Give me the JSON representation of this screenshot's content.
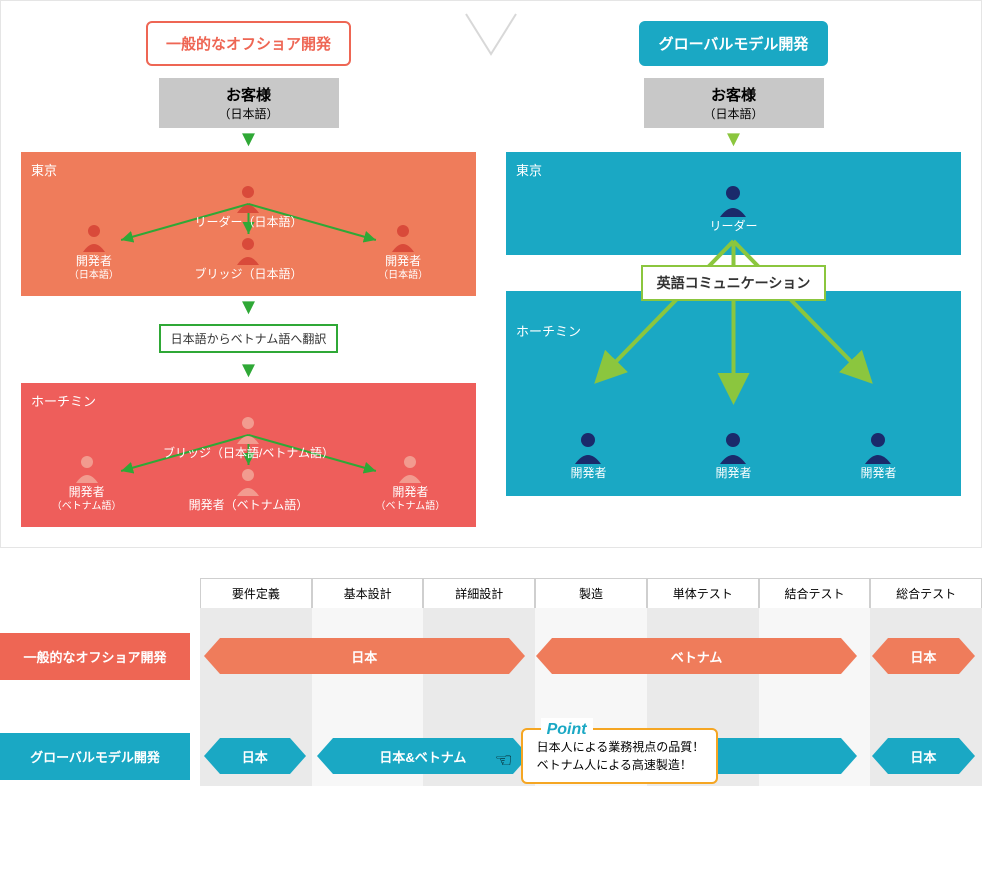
{
  "colors": {
    "orange": "#ee6654",
    "orange2": "#ef7c5b",
    "red": "#ee5e5b",
    "teal": "#1aa8c4",
    "green": "#2fa836",
    "lime": "#8bc63e",
    "navy": "#1a2a6b",
    "gray": "#c8c8c8",
    "amber": "#f5a623"
  },
  "top": {
    "left_header": "一般的なオフショア開発",
    "right_header": "グローバルモデル開発",
    "customer_title": "お客様",
    "customer_lang": "（日本語）",
    "tokyo": "東京",
    "hcm": "ホーチミン",
    "left": {
      "tokyo": {
        "leader": "リーダー（日本語）",
        "bridge": "ブリッジ（日本語）",
        "dev_l": {
          "role": "開発者",
          "lang": "（日本語）"
        },
        "dev_r": {
          "role": "開発者",
          "lang": "（日本語）"
        }
      },
      "translate": "日本語からベトナム語へ翻訳",
      "hcm": {
        "bridge": "ブリッジ（日本語/ベトナム語）",
        "dev_c": "開発者（ベトナム語）",
        "dev_l": {
          "role": "開発者",
          "lang": "（ベトナム語）"
        },
        "dev_r": {
          "role": "開発者",
          "lang": "（ベトナム語）"
        }
      }
    },
    "right": {
      "leader": "リーダー",
      "eng_comm": "英語コミュニケーション",
      "dev": "開発者"
    }
  },
  "bottom": {
    "phases": [
      "要件定義",
      "基本設計",
      "詳細設計",
      "製造",
      "単体テスト",
      "結合テスト",
      "総合テスト"
    ],
    "row1_label": "一般的なオフショア開発",
    "row2_label": "グローバルモデル開発",
    "row1": {
      "bars": [
        {
          "text": "日本",
          "left_pct": 2.5,
          "width_pct": 37,
          "color": "orange"
        },
        {
          "text": "ベトナム",
          "left_pct": 45,
          "width_pct": 37,
          "color": "orange"
        },
        {
          "text": "日本",
          "left_pct": 88,
          "width_pct": 9,
          "color": "orange"
        }
      ]
    },
    "row2": {
      "bars": [
        {
          "text": "日本",
          "left_pct": 2.5,
          "width_pct": 9,
          "color": "teal"
        },
        {
          "text": "日本&ベトナム",
          "left_pct": 17,
          "width_pct": 23,
          "color": "teal"
        },
        {
          "text": "",
          "left_pct": 45,
          "width_pct": 37,
          "color": "teal"
        },
        {
          "text": "日本",
          "left_pct": 88,
          "width_pct": 9,
          "color": "teal"
        }
      ]
    },
    "point": {
      "title": "Point",
      "line1": "日本人による業務視点の品質！",
      "line2": "ベトナム人による高速製造！"
    }
  }
}
